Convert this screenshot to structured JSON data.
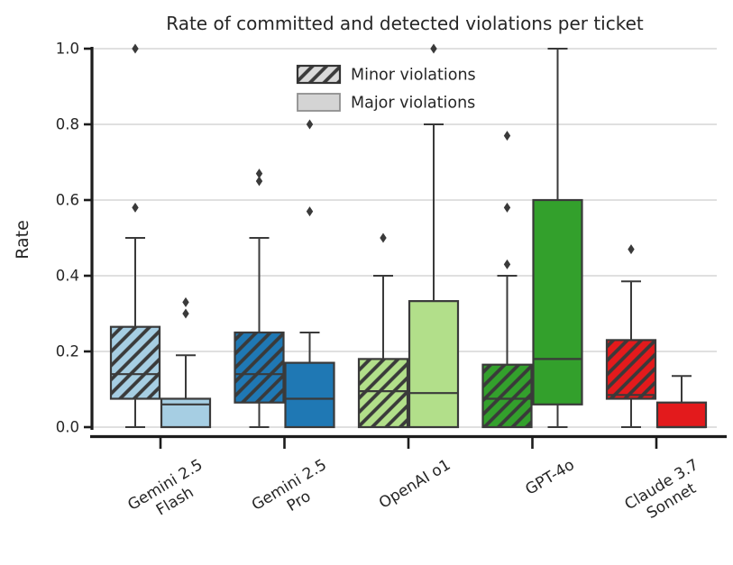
{
  "chart_data": {
    "type": "boxplot",
    "title": "Rate of committed and detected violations per ticket",
    "ylabel": "Rate",
    "ylim": [
      0.0,
      1.0
    ],
    "yticks": [
      0.0,
      0.2,
      0.4,
      0.6,
      0.8,
      1.0
    ],
    "grid": "horizontal",
    "legend_position": "upper center, no frame",
    "legend": [
      {
        "label": "Minor violations",
        "hatched": true,
        "swatch_fill": "#d9d9d9"
      },
      {
        "label": "Major violations",
        "hatched": false,
        "swatch_fill": "#d4d4d4"
      }
    ],
    "series_note": "per model: minor = hatched box, major = solid box, same model color",
    "models": [
      {
        "label": "Gemini 2.5\nFlash",
        "color": "#a6cee3",
        "minor": {
          "whislo": 0.0,
          "q1": 0.075,
          "med": 0.14,
          "q3": 0.265,
          "whishi": 0.5,
          "outliers": [
            0.58,
            1.0
          ]
        },
        "major": {
          "whislo": 0.0,
          "q1": 0.0,
          "med": 0.06,
          "q3": 0.075,
          "whishi": 0.19,
          "outliers": [
            0.3,
            0.33
          ]
        }
      },
      {
        "label": "Gemini 2.5\nPro",
        "color": "#1f78b4",
        "minor": {
          "whislo": 0.0,
          "q1": 0.065,
          "med": 0.14,
          "q3": 0.25,
          "whishi": 0.5,
          "outliers": [
            0.65,
            0.67
          ]
        },
        "major": {
          "whislo": 0.0,
          "q1": 0.0,
          "med": 0.075,
          "q3": 0.17,
          "whishi": 0.25,
          "outliers": [
            0.57,
            0.8
          ]
        }
      },
      {
        "label": "OpenAI o1",
        "color": "#b2df8a",
        "minor": {
          "whislo": 0.0,
          "q1": 0.0,
          "med": 0.095,
          "q3": 0.18,
          "whishi": 0.4,
          "outliers": [
            0.5
          ]
        },
        "major": {
          "whislo": 0.0,
          "q1": 0.0,
          "med": 0.09,
          "q3": 0.333,
          "whishi": 0.8,
          "outliers": [
            1.0
          ]
        }
      },
      {
        "label": "GPT-4o",
        "color": "#33a02c",
        "minor": {
          "whislo": 0.0,
          "q1": 0.0,
          "med": 0.075,
          "q3": 0.165,
          "whishi": 0.4,
          "outliers": [
            0.43,
            0.58,
            0.77
          ]
        },
        "major": {
          "whislo": 0.0,
          "q1": 0.06,
          "med": 0.18,
          "q3": 0.6,
          "whishi": 1.0,
          "outliers": []
        }
      },
      {
        "label": "Claude 3.7\nSonnet",
        "color": "#e31a1c",
        "minor": {
          "whislo": 0.0,
          "q1": 0.075,
          "med": 0.085,
          "q3": 0.23,
          "whishi": 0.385,
          "outliers": [
            0.47
          ]
        },
        "major": {
          "whislo": 0.0,
          "q1": 0.0,
          "med": 0.0,
          "q3": 0.065,
          "whishi": 0.135,
          "outliers": []
        }
      }
    ],
    "style": {
      "box_edge_color": "#3a3a3a",
      "outlier_color": "#3a3a3a",
      "grid_color": "#dcdcdc",
      "spine_color": "#1c1c1c",
      "text_color": "#262626"
    }
  }
}
